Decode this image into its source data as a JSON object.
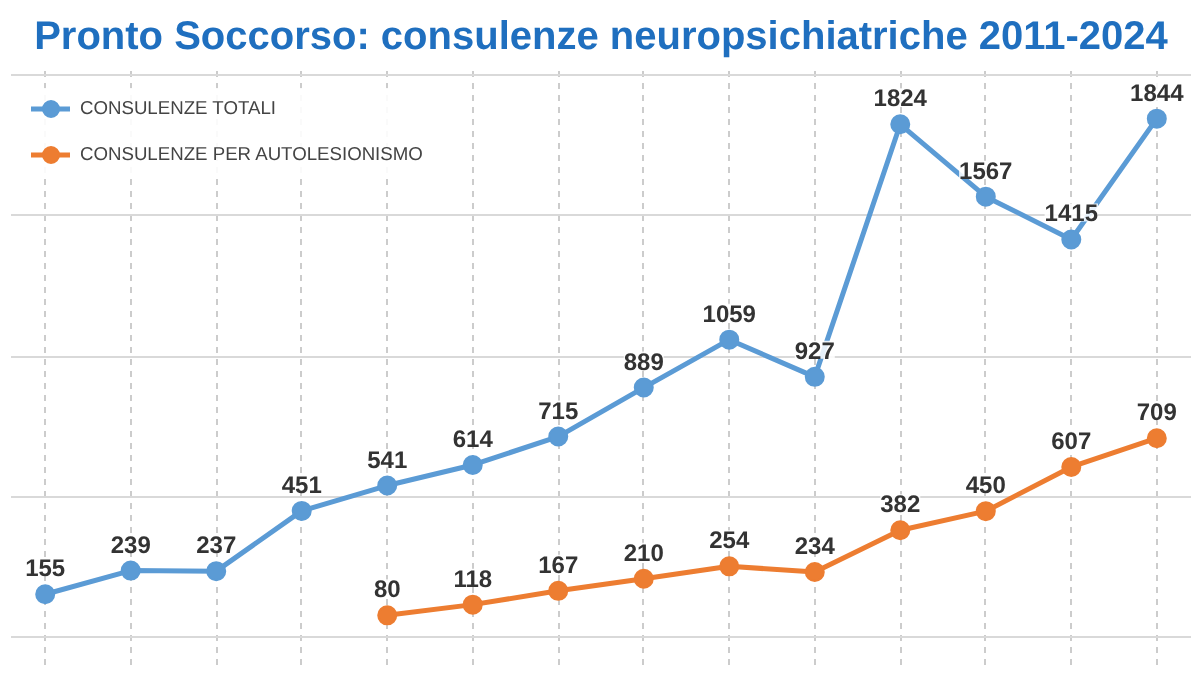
{
  "chart_data": {
    "type": "line",
    "title": "Pronto Soccorso: consulenze neuropsichiatriche 2011-2024",
    "categories": [
      null,
      null,
      null,
      null,
      null,
      null,
      null,
      null,
      null,
      null,
      null,
      null,
      null,
      null
    ],
    "series": [
      {
        "name": "CONSULENZE TOTALI",
        "color": "#5b9bd5",
        "values": [
          155,
          239,
          237,
          451,
          541,
          614,
          715,
          889,
          1059,
          927,
          1824,
          1567,
          1415,
          1844
        ]
      },
      {
        "name": "CONSULENZE PER AUTOLESIONISMO",
        "color": "#ed7d31",
        "values": [
          null,
          null,
          null,
          null,
          80,
          118,
          167,
          210,
          254,
          234,
          382,
          450,
          607,
          709
        ]
      }
    ],
    "data_labels": true,
    "grid": true,
    "legend": "top left",
    "marker": "circle",
    "line_style": "solid",
    "tick_labels": false
  }
}
